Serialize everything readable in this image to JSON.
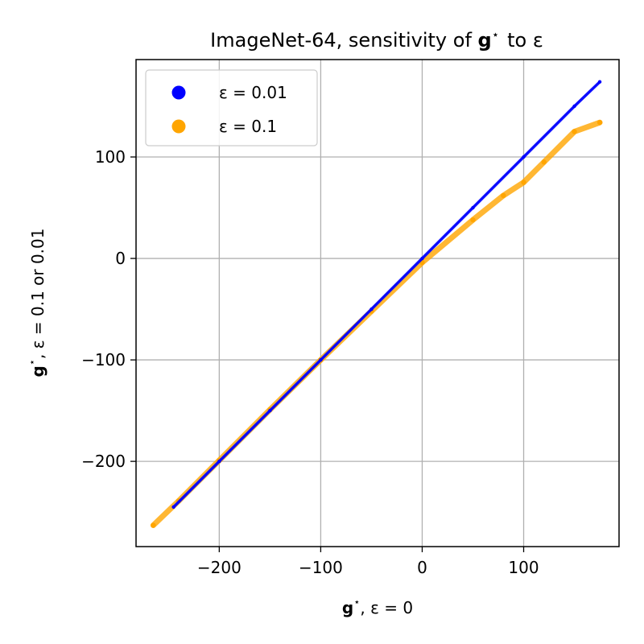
{
  "chart_data": {
    "type": "scatter",
    "title": "ImageNet-64, sensitivity of g⋆ to ε",
    "title_parts": {
      "prefix": "ImageNet-64, sensitivity of ",
      "symbol": "g",
      "star": "⋆",
      "suffix": "to ε"
    },
    "xlabel": "g⋆, ε = 0",
    "ylabel": "g⋆, ε = 0.1 or 0.01",
    "xlabel_parts": {
      "symbol": "g",
      "star": "⋆",
      "rest": ", ε = 0"
    },
    "ylabel_parts": {
      "symbol": "g",
      "star": "⋆",
      "rest": ", ε = 0.1 or 0.01"
    },
    "xlim": [
      -282,
      194
    ],
    "ylim": [
      -284,
      196
    ],
    "xticks": [
      -200,
      -100,
      0,
      100
    ],
    "yticks": [
      -200,
      -100,
      0,
      100
    ],
    "xtick_labels": [
      "−200",
      "−100",
      "0",
      "100"
    ],
    "ytick_labels": [
      "−200",
      "−100",
      "0",
      "100"
    ],
    "grid": true,
    "legend_position": "top-left",
    "series": [
      {
        "name": "ε = 0.01",
        "color": "#0000ff",
        "x": [
          -245,
          -200,
          -150,
          -100,
          -50,
          0,
          50,
          100,
          150,
          175
        ],
        "y": [
          -245,
          -200,
          -150,
          -100,
          -50,
          0,
          50,
          100,
          150,
          174
        ]
      },
      {
        "name": "ε = 0.1",
        "color": "#ffa500",
        "x": [
          -265,
          -240,
          -200,
          -150,
          -100,
          -50,
          0,
          50,
          80,
          100,
          120,
          150,
          175
        ],
        "y": [
          -263,
          -239,
          -199,
          -149,
          -100,
          -52,
          -4,
          38,
          62,
          75,
          95,
          125,
          134
        ]
      }
    ]
  }
}
